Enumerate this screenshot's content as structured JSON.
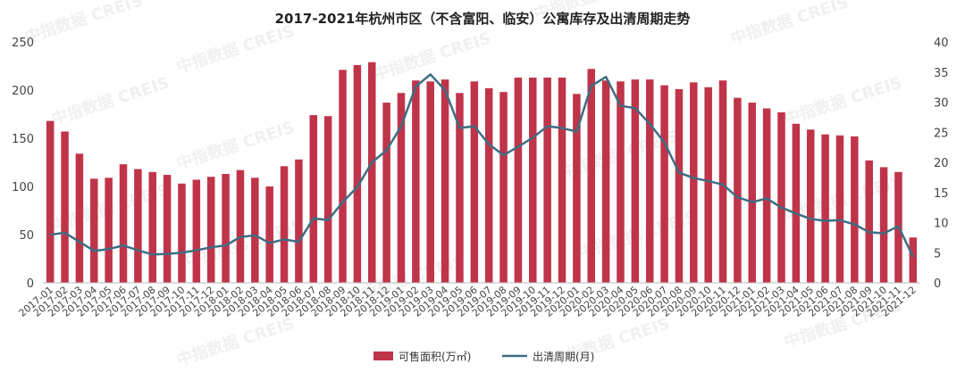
{
  "chart_data": {
    "type": "bar+line",
    "title": "2017-2021年杭州市区（不含富阳、临安）公寓库存及出清周期走势",
    "categories": [
      "2017-01",
      "2017-02",
      "2017-03",
      "2017-04",
      "2017-05",
      "2017-06",
      "2017-07",
      "2017-08",
      "2017-09",
      "2017-10",
      "2017-11",
      "2017-12",
      "2018-01",
      "2018-02",
      "2018-03",
      "2018-04",
      "2018-05",
      "2018-06",
      "2018-07",
      "2018-08",
      "2018-09",
      "2018-10",
      "2018-11",
      "2018-12",
      "2019-01",
      "2019-02",
      "2019-03",
      "2019-04",
      "2019-05",
      "2019-06",
      "2019-07",
      "2019-08",
      "2019-09",
      "2019-10",
      "2019-11",
      "2019-12",
      "2020-01",
      "2020-02",
      "2020-03",
      "2020-04",
      "2020-05",
      "2020-06",
      "2020-07",
      "2020-08",
      "2020-09",
      "2020-10",
      "2020-11",
      "2020-12",
      "2021-01",
      "2021-02",
      "2021-03",
      "2021-04",
      "2021-05",
      "2021-06",
      "2021-07",
      "2021-08",
      "2021-09",
      "2021-10",
      "2021-11",
      "2021-12"
    ],
    "series": [
      {
        "name": "可售面积(万㎡)",
        "type": "bar",
        "axis": "left",
        "color": "#c0344a",
        "values": [
          168,
          157,
          134,
          108,
          109,
          123,
          118,
          115,
          112,
          103,
          107,
          110,
          113,
          117,
          109,
          100,
          121,
          128,
          174,
          173,
          221,
          226,
          229,
          187,
          197,
          210,
          209,
          211,
          197,
          209,
          202,
          198,
          213,
          213,
          213,
          213,
          196,
          222,
          210,
          209,
          211,
          211,
          205,
          201,
          208,
          203,
          210,
          192,
          187,
          181,
          177,
          165,
          159,
          154,
          153,
          152,
          127,
          120,
          115,
          47
        ]
      },
      {
        "name": "出清周期(月)",
        "type": "line",
        "axis": "right",
        "color": "#3d6d82",
        "values": [
          8.0,
          8.3,
          6.8,
          5.3,
          5.6,
          6.2,
          5.4,
          4.7,
          4.8,
          5.0,
          5.4,
          5.9,
          6.2,
          7.6,
          7.9,
          6.6,
          7.2,
          6.8,
          10.7,
          10.4,
          13.4,
          15.9,
          20.0,
          22.0,
          26.0,
          32.6,
          34.6,
          32.0,
          25.7,
          26.0,
          23.0,
          21.2,
          22.6,
          24.1,
          26.0,
          25.7,
          25.1,
          32.7,
          34.2,
          29.4,
          29.0,
          26.4,
          23.3,
          18.3,
          17.4,
          16.9,
          16.3,
          14.2,
          13.4,
          14.0,
          12.5,
          11.5,
          10.6,
          10.3,
          10.4,
          9.7,
          8.4,
          8.2,
          9.4,
          4.3
        ]
      }
    ],
    "y_left": {
      "ticks": [
        "0",
        "50",
        "100",
        "150",
        "200",
        "250"
      ],
      "ylim": [
        0,
        250
      ]
    },
    "y_right": {
      "ticks": [
        "0",
        "5",
        "10",
        "15",
        "20",
        "25",
        "30",
        "35",
        "40"
      ],
      "ylim": [
        0,
        40
      ]
    },
    "legend": {
      "position": "bottom-center",
      "bar_label": "可售面积(万㎡)",
      "line_label": "出清周期(月)"
    },
    "watermark": "中指数据 CREIS"
  }
}
